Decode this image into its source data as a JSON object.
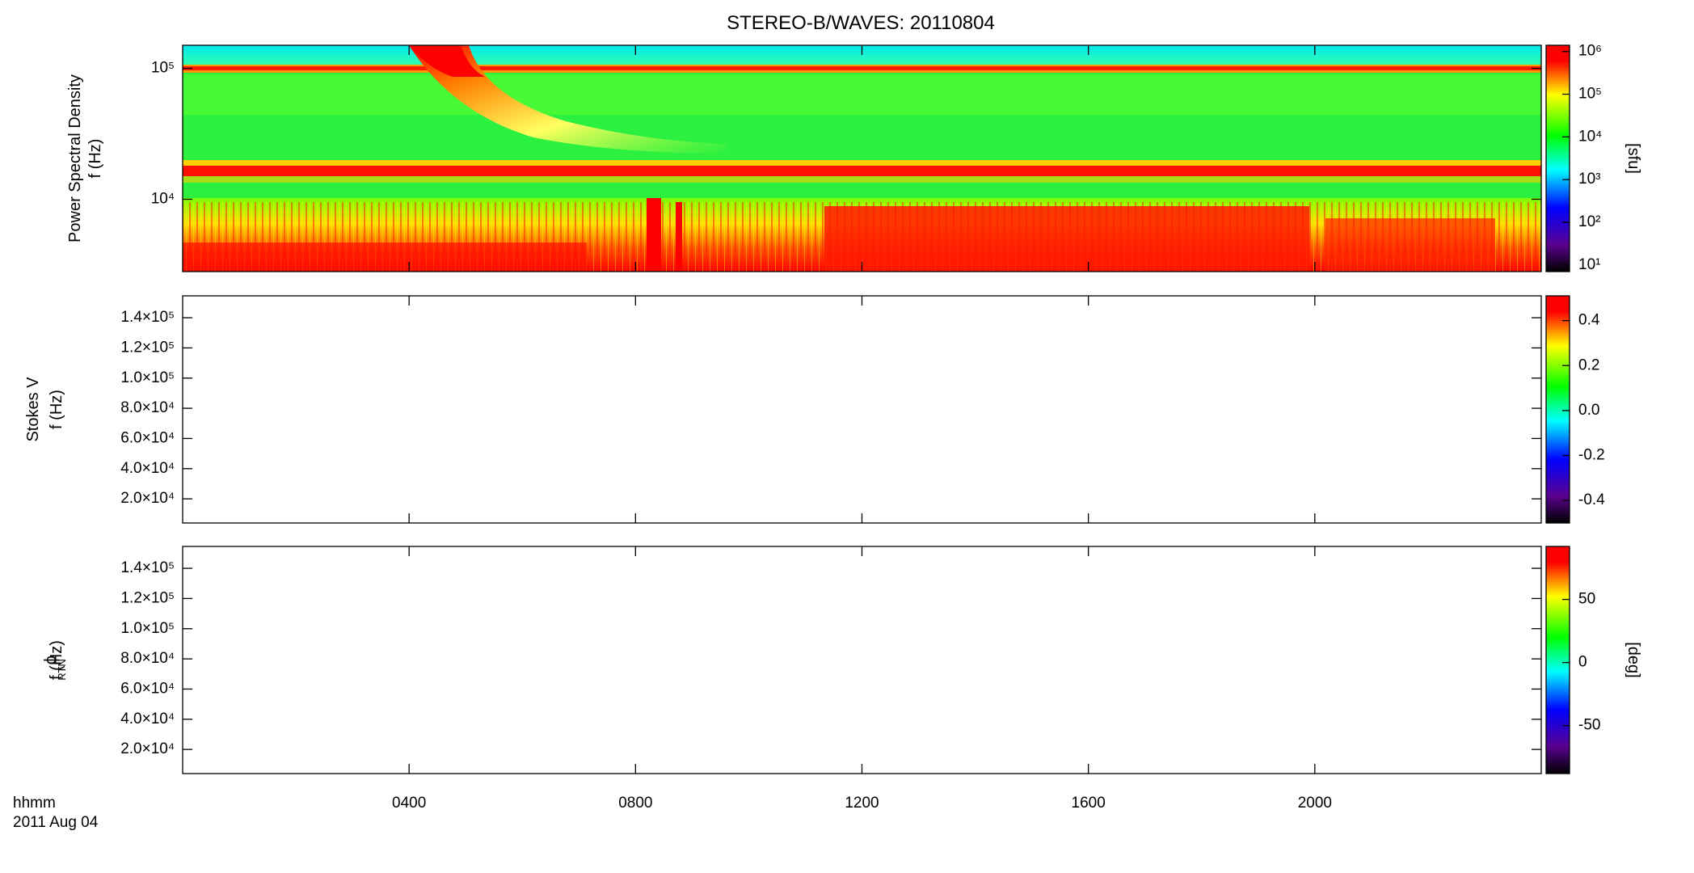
{
  "title": "STEREO-B/WAVES: 20110804",
  "x_axis": {
    "label": "hhmm",
    "date": "2011 Aug 04",
    "xlim": [
      0,
      24
    ],
    "xticks": [
      {
        "value": 4,
        "label": "0400"
      },
      {
        "value": 8,
        "label": "0800"
      },
      {
        "value": 12,
        "label": "1200"
      },
      {
        "value": 16,
        "label": "1600"
      },
      {
        "value": 20,
        "label": "2000"
      }
    ]
  },
  "chart_data": [
    {
      "type": "heatmap",
      "ylabel": "Power Spectral Density",
      "ylabel2": "f (Hz)",
      "ylog": true,
      "ylim": [
        2800,
        150000
      ],
      "yticks": [
        {
          "value": 10000,
          "label": "10⁴"
        },
        {
          "value": 100000,
          "label": "10⁵"
        }
      ],
      "colorbar": {
        "log": true,
        "lim": [
          7,
          1400000
        ],
        "label": "[sfu]",
        "ticks": [
          {
            "value": 10,
            "label": "10¹"
          },
          {
            "value": 100,
            "label": "10²"
          },
          {
            "value": 1000,
            "label": "10³"
          },
          {
            "value": 10000,
            "label": "10⁴"
          },
          {
            "value": 100000,
            "label": "10⁵"
          },
          {
            "value": 1000000,
            "label": "10⁶"
          }
        ]
      }
    },
    {
      "type": "heatmap",
      "ylabel": "Stokes V",
      "ylabel2": "f (Hz)",
      "ylog": false,
      "ylim": [
        4000,
        154500
      ],
      "yticks": [
        {
          "value": 20000,
          "label": "2.0×10⁴"
        },
        {
          "value": 40000,
          "label": "4.0×10⁴"
        },
        {
          "value": 60000,
          "label": "6.0×10⁴"
        },
        {
          "value": 80000,
          "label": "8.0×10⁴"
        },
        {
          "value": 100000,
          "label": "1.0×10⁵"
        },
        {
          "value": 120000,
          "label": "1.2×10⁵"
        },
        {
          "value": 140000,
          "label": "1.4×10⁵"
        }
      ],
      "colorbar": {
        "log": false,
        "lim": [
          -0.5,
          0.51
        ],
        "ticks": [
          -0.4,
          -0.2,
          {
            "value": 0,
            "label": "0.0"
          },
          0.2,
          0.4
        ]
      }
    },
    {
      "type": "heatmap",
      "ylabel": "ϕ",
      "ylabel_sub": "RTN",
      "ylabel2": "f (Hz)",
      "ylog": false,
      "ylim": [
        4000,
        154500
      ],
      "yticks": [
        {
          "value": 20000,
          "label": "2.0×10⁴"
        },
        {
          "value": 40000,
          "label": "4.0×10⁴"
        },
        {
          "value": 60000,
          "label": "6.0×10⁴"
        },
        {
          "value": 80000,
          "label": "8.0×10⁴"
        },
        {
          "value": 100000,
          "label": "1.0×10⁵"
        },
        {
          "value": 120000,
          "label": "1.2×10⁵"
        },
        {
          "value": 140000,
          "label": "1.4×10⁵"
        }
      ],
      "colorbar": {
        "log": false,
        "lim": [
          -88,
          92
        ],
        "label": "[deg]",
        "ticks": [
          -50,
          0,
          50
        ]
      }
    }
  ]
}
